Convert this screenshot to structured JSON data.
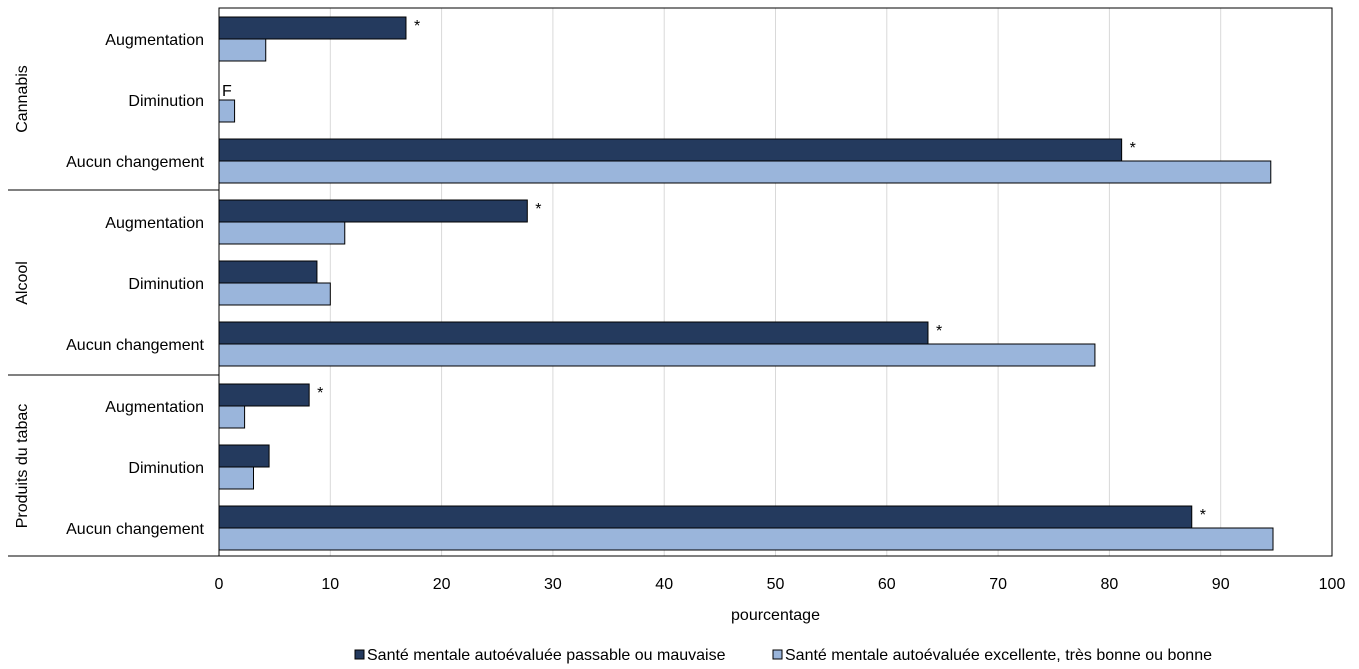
{
  "chart_data": {
    "type": "bar",
    "orientation": "horizontal",
    "xlabel": "pourcentage",
    "xlim": [
      0,
      100
    ],
    "xticks": [
      0,
      10,
      20,
      30,
      40,
      50,
      60,
      70,
      80,
      90,
      100
    ],
    "grid": "vertical",
    "legend_position": "bottom",
    "groups": [
      {
        "name": "Cannabis",
        "categories": [
          {
            "label": "Augmentation",
            "values": [
              16.8,
              4.2
            ],
            "annotations": [
              "*",
              ""
            ]
          },
          {
            "label": "Diminution",
            "values": [
              null,
              1.4
            ],
            "annotations": [
              "F",
              ""
            ]
          },
          {
            "label": "Aucun changement",
            "values": [
              81.1,
              94.5
            ],
            "annotations": [
              "*",
              ""
            ]
          }
        ]
      },
      {
        "name": "Alcool",
        "categories": [
          {
            "label": "Augmentation",
            "values": [
              27.7,
              11.3
            ],
            "annotations": [
              "*",
              ""
            ]
          },
          {
            "label": "Diminution",
            "values": [
              8.8,
              10.0
            ],
            "annotations": [
              "",
              ""
            ]
          },
          {
            "label": "Aucun changement",
            "values": [
              63.7,
              78.7
            ],
            "annotations": [
              "*",
              ""
            ]
          }
        ]
      },
      {
        "name": "Produits du tabac",
        "categories": [
          {
            "label": "Augmentation",
            "values": [
              8.1,
              2.3
            ],
            "annotations": [
              "*",
              ""
            ]
          },
          {
            "label": "Diminution",
            "values": [
              4.5,
              3.1
            ],
            "annotations": [
              "",
              ""
            ]
          },
          {
            "label": "Aucun changement",
            "values": [
              87.4,
              94.7
            ],
            "annotations": [
              "*",
              ""
            ]
          }
        ]
      }
    ],
    "series": [
      {
        "name": "Santé mentale autoévaluée passable ou mauvaise",
        "color": "#243a5e"
      },
      {
        "name": "Santé mentale autoévaluée excellente, très bonne ou bonne",
        "color": "#9ab5db"
      }
    ],
    "gridline_color": "#d9d9d9",
    "border_color": "#000000"
  }
}
